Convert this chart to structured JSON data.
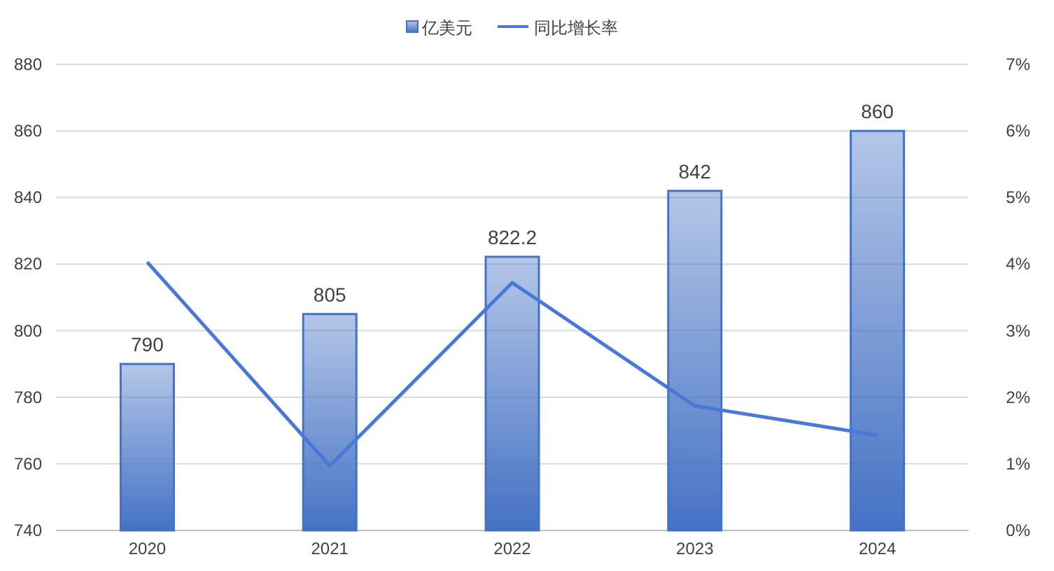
{
  "chart_data": {
    "type": "bar",
    "categories": [
      "2020",
      "2021",
      "2022",
      "2023",
      "2024"
    ],
    "series": [
      {
        "name": "亿美元",
        "color": "#4472c4",
        "values": [
          790,
          805,
          822.2,
          842,
          860
        ],
        "value_labels": [
          "790",
          "805",
          "822.2",
          "842",
          "860"
        ]
      },
      {
        "name": "同比增长率",
        "type": "line",
        "axis": "y2",
        "color": "#4a78d8",
        "values": [
          4.03,
          0.97,
          3.72,
          1.87,
          1.43
        ]
      }
    ],
    "ylim": [
      740,
      880
    ],
    "yticks": [
      740,
      760,
      780,
      800,
      820,
      840,
      860,
      880
    ],
    "y2lim": [
      0,
      7
    ],
    "y2ticks": [
      {
        "value": 0,
        "label": "0%"
      },
      {
        "value": 1,
        "label": "1%"
      },
      {
        "value": 2,
        "label": "2%"
      },
      {
        "value": 3,
        "label": "3%"
      },
      {
        "value": 4,
        "label": "4%"
      },
      {
        "value": 5,
        "label": "5%"
      },
      {
        "value": 6,
        "label": "6%"
      },
      {
        "value": 7,
        "label": "7%"
      }
    ],
    "grid": "y",
    "legend": "top",
    "marker": "none"
  }
}
